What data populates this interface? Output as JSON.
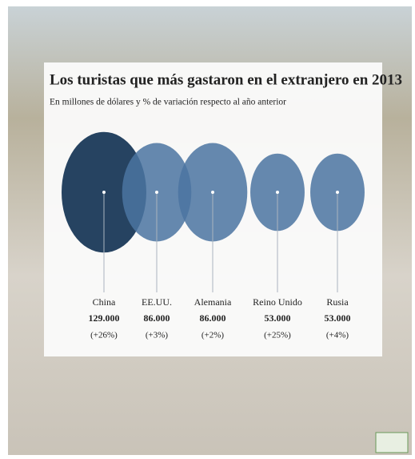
{
  "chart_data": {
    "type": "bubble",
    "title": "Los turistas que más gastaron en el extranjero en 2013",
    "subtitle": "En millones de dólares y % de variación respecto al año anterior",
    "categories": [
      "China",
      "EE.UU.",
      "Alemania",
      "Reino Unido",
      "Rusia"
    ],
    "values": [
      129000,
      86000,
      86000,
      53000,
      53000
    ],
    "value_labels": [
      "129.000",
      "86.000",
      "86.000",
      "53.000",
      "53.000"
    ],
    "changes": [
      26,
      3,
      2,
      25,
      4
    ],
    "change_labels": [
      "(+26%)",
      "(+3%)",
      "(+2%)",
      "(+25%)",
      "(+4%)"
    ],
    "colors": [
      "#1f3d5c",
      "#4b74a1",
      "#4b74a1",
      "#4b74a1",
      "#4b74a1"
    ]
  }
}
